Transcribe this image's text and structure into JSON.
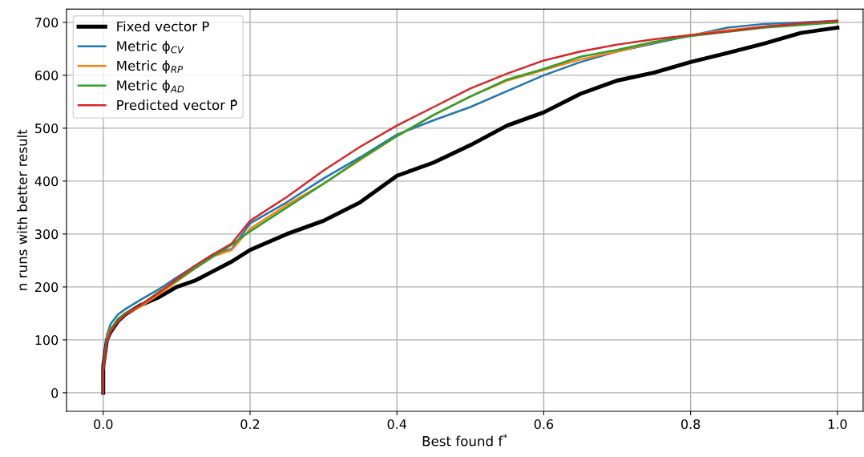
{
  "chart_data": {
    "type": "line",
    "xlabel": "Best found f$^{*}$",
    "ylabel": "n runs with better result",
    "x": [
      0,
      0,
      0.005,
      0.01,
      0.02,
      0.03,
      0.05,
      0.075,
      0.1,
      0.125,
      0.15,
      0.175,
      0.2,
      0.25,
      0.3,
      0.35,
      0.4,
      0.45,
      0.5,
      0.55,
      0.6,
      0.65,
      0.7,
      0.75,
      0.8,
      0.85,
      0.9,
      0.95,
      1.0
    ],
    "series": [
      {
        "name": "Fixed vector P",
        "color": "#000000",
        "values": [
          0,
          50,
          100,
          115,
          135,
          148,
          165,
          180,
          200,
          212,
          230,
          248,
          270,
          300,
          325,
          360,
          410,
          435,
          468,
          505,
          530,
          565,
          590,
          605,
          625,
          642,
          660,
          680,
          690
        ]
      },
      {
        "name": "Metric ϕ$_{CV}$",
        "color": "#1f77b4",
        "values": [
          0,
          50,
          110,
          130,
          148,
          158,
          175,
          195,
          218,
          240,
          262,
          272,
          320,
          360,
          405,
          445,
          488,
          515,
          540,
          570,
          600,
          625,
          645,
          660,
          675,
          690,
          697,
          700,
          703
        ]
      },
      {
        "name": "Metric ϕ$_{RP}$",
        "color": "#ff7f0e",
        "values": [
          null,
          null,
          105,
          122,
          135,
          148,
          162,
          185,
          210,
          235,
          258,
          270,
          310,
          355,
          395,
          440,
          485,
          525,
          560,
          590,
          610,
          630,
          645,
          662,
          676,
          685,
          692,
          697,
          700
        ]
      },
      {
        "name": "Metric ϕ$_{AD}$",
        "color": "#2ca02c",
        "values": [
          0,
          50,
          100,
          120,
          140,
          150,
          165,
          190,
          212,
          235,
          258,
          280,
          305,
          350,
          395,
          442,
          485,
          525,
          560,
          592,
          612,
          635,
          648,
          663,
          674,
          682,
          690,
          695,
          700
        ]
      },
      {
        "name": "Predicted vector P̂",
        "color": "#d62728",
        "values": [
          0,
          40,
          95,
          115,
          135,
          148,
          165,
          188,
          215,
          240,
          262,
          282,
          325,
          370,
          420,
          465,
          505,
          540,
          575,
          603,
          628,
          645,
          658,
          668,
          676,
          683,
          692,
          698,
          703
        ]
      }
    ],
    "xlim": [
      -0.05,
      1.035
    ],
    "ylim": [
      -35,
      725
    ],
    "xticks": [
      {
        "value": 0,
        "label": "0.0"
      },
      0.2,
      0.4,
      0.6,
      0.8,
      {
        "value": 1,
        "label": "1.0"
      }
    ],
    "yticks": [
      0,
      100,
      200,
      300,
      400,
      500,
      600,
      700
    ],
    "grid": true,
    "legend": "top left",
    "line_style": "solid",
    "marker": "none"
  }
}
